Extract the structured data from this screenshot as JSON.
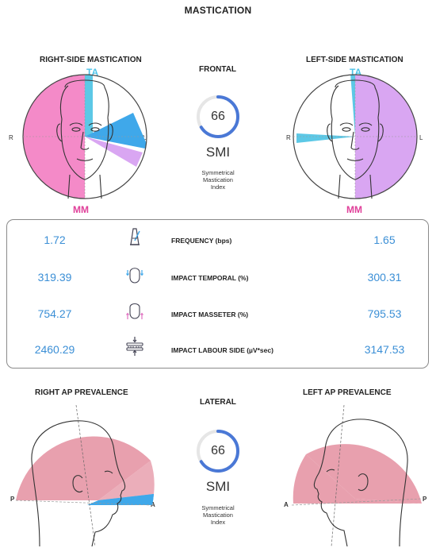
{
  "title": "MASTICATION",
  "frontal": {
    "heading": "FRONTAL",
    "left_panel": {
      "heading": "RIGHT-SIDE MASTICATION",
      "top_tag": "TA",
      "bottom_tag": "MM",
      "side_left": "R",
      "side_right": "L"
    },
    "right_panel": {
      "heading": "LEFT-SIDE MASTICATION",
      "top_tag": "TA",
      "bottom_tag": "MM",
      "side_left": "R",
      "side_right": "L"
    },
    "gauge": {
      "value": "66",
      "fraction": 0.66,
      "label": "SMI",
      "caption": [
        "Symmetrical",
        "Mastication",
        "Index"
      ]
    }
  },
  "metrics": [
    {
      "label": "FREQUENCY (bps)",
      "left": "1.72",
      "right": "1.65",
      "icon": "metronome-icon"
    },
    {
      "label": "IMPACT TEMPORAL (%)",
      "left": "319.39",
      "right": "300.31",
      "icon": "head-temporal-icon"
    },
    {
      "label": "IMPACT MASSETER (%)",
      "left": "754.27",
      "right": "795.53",
      "icon": "head-masseter-icon"
    },
    {
      "label": "IMPACT LABOUR SIDE  (µV*sec)",
      "left": "2460.29",
      "right": "3147.53",
      "icon": "teeth-press-icon"
    }
  ],
  "lateral": {
    "heading": "LATERAL",
    "left_panel": {
      "heading": "RIGHT AP PREVALENCE",
      "back_tag": "P",
      "front_tag": "A"
    },
    "right_panel": {
      "heading": "LEFT AP PREVALENCE",
      "back_tag": "P",
      "front_tag": "A"
    },
    "gauge": {
      "value": "66",
      "fraction": 0.66,
      "label": "SMI",
      "caption": [
        "Symmetrical",
        "Mastication",
        "Index"
      ]
    }
  },
  "colors": {
    "pink": "#f48ac8",
    "violet": "#d9a6f2",
    "cyan": "#5cc8e6",
    "blue": "#3fa8ea",
    "rose": "#e8a0ae",
    "gauge": "#4a78d6",
    "value_blue": "#3b8fd6"
  }
}
